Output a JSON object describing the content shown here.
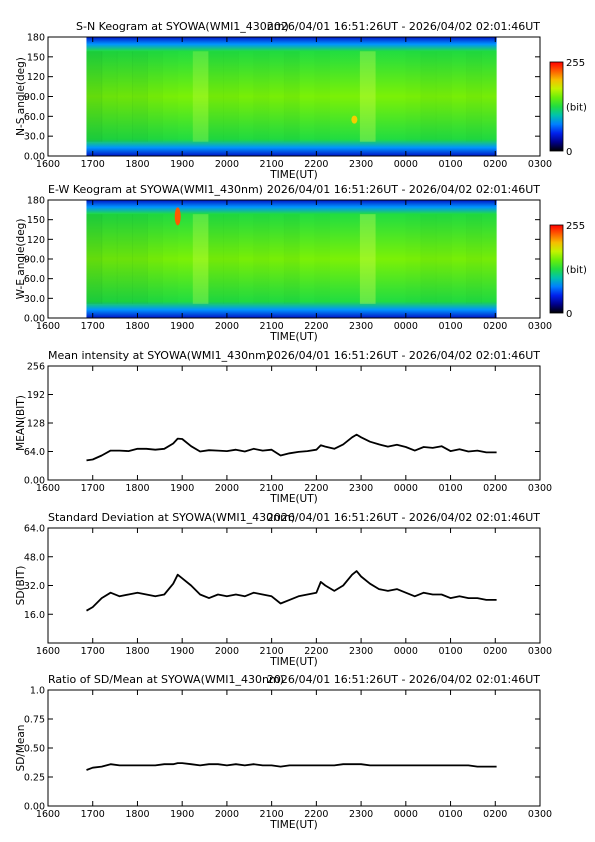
{
  "time_range": "2026/04/01 16:51:26UT - 2026/04/02 02:01:46UT",
  "chart_data": [
    {
      "type": "heatmap",
      "title": "S-N Keogram at SYOWA(WMI1_430nm)",
      "xlabel": "TIME(UT)",
      "ylabel": "N-S angle(deg)",
      "x_ticks": [
        "1600",
        "1700",
        "1800",
        "1900",
        "2000",
        "2100",
        "2200",
        "2300",
        "0000",
        "0100",
        "0200",
        "0300"
      ],
      "y_ticks": [
        "0.00",
        "30.0",
        "60.0",
        "90.0",
        "120",
        "150",
        "180"
      ],
      "x_range_hours": [
        16.0,
        27.0
      ],
      "data_range_hours": [
        16.86,
        26.03
      ],
      "ylim": [
        0,
        180
      ],
      "colorbar": {
        "min": "0",
        "max": "255",
        "unit": "(bit)"
      },
      "brightness_profile": [
        0.45,
        0.5,
        0.52,
        0.5,
        0.55,
        0.58,
        0.6,
        0.72,
        0.55,
        0.55,
        0.58,
        0.56,
        0.58,
        0.55,
        0.6,
        0.58,
        0.6,
        0.65,
        0.78,
        0.6,
        0.6,
        0.58,
        0.55,
        0.56,
        0.58,
        0.55,
        0.57
      ],
      "hot_spot": {
        "time_hours": 22.85,
        "angle_deg": 55,
        "value": 200
      },
      "upper_edge_change": {
        "time_hours": 19.6,
        "angle_deg_before": 168,
        "angle_deg_after": 160
      }
    },
    {
      "type": "heatmap",
      "title": "E-W Keogram at SYOWA(WMI1_430nm)",
      "xlabel": "TIME(UT)",
      "ylabel": "W-E angle(deg)",
      "x_ticks": [
        "1600",
        "1700",
        "1800",
        "1900",
        "2000",
        "2100",
        "2200",
        "2300",
        "0000",
        "0100",
        "0200",
        "0300"
      ],
      "y_ticks": [
        "0.00",
        "30.0",
        "60.0",
        "90.0",
        "120",
        "150",
        "180"
      ],
      "x_range_hours": [
        16.0,
        27.0
      ],
      "data_range_hours": [
        16.86,
        26.03
      ],
      "ylim": [
        0,
        180
      ],
      "colorbar": {
        "min": "0",
        "max": "255",
        "unit": "(bit)"
      },
      "brightness_profile": [
        0.45,
        0.5,
        0.5,
        0.5,
        0.55,
        0.58,
        0.62,
        0.75,
        0.55,
        0.55,
        0.58,
        0.56,
        0.58,
        0.55,
        0.6,
        0.58,
        0.6,
        0.65,
        0.8,
        0.62,
        0.6,
        0.58,
        0.55,
        0.56,
        0.58,
        0.55,
        0.57
      ],
      "hot_spot": {
        "time_hours": 18.9,
        "angle_deg": 155,
        "value": 230
      }
    },
    {
      "type": "line",
      "title": "Mean intensity at SYOWA(WMI1_430nm)",
      "xlabel": "TIME(UT)",
      "ylabel": "MEAN(BIT)",
      "x_ticks": [
        "1600",
        "1700",
        "1800",
        "1900",
        "2000",
        "2100",
        "2200",
        "2300",
        "0000",
        "0100",
        "0200",
        "0300"
      ],
      "y_ticks": [
        "0.00",
        "64.0",
        "128",
        "192",
        "256"
      ],
      "x_range_hours": [
        16.0,
        27.0
      ],
      "ylim": [
        0,
        256
      ],
      "x": [
        16.86,
        17.0,
        17.2,
        17.4,
        17.6,
        17.8,
        18.0,
        18.2,
        18.4,
        18.6,
        18.8,
        18.9,
        19.0,
        19.2,
        19.4,
        19.6,
        19.8,
        20.0,
        20.2,
        20.4,
        20.6,
        20.8,
        21.0,
        21.2,
        21.4,
        21.6,
        21.8,
        22.0,
        22.1,
        22.2,
        22.4,
        22.6,
        22.8,
        22.9,
        23.0,
        23.2,
        23.4,
        23.6,
        23.8,
        24.0,
        24.2,
        24.4,
        24.6,
        24.8,
        25.0,
        25.2,
        25.4,
        25.6,
        25.8,
        26.03
      ],
      "y": [
        44,
        46,
        55,
        66,
        66,
        65,
        70,
        70,
        68,
        70,
        82,
        93,
        92,
        76,
        64,
        67,
        66,
        65,
        68,
        64,
        70,
        66,
        68,
        55,
        60,
        63,
        65,
        68,
        78,
        75,
        70,
        80,
        96,
        102,
        96,
        86,
        80,
        75,
        79,
        74,
        66,
        74,
        72,
        76,
        65,
        69,
        64,
        66,
        62,
        62
      ]
    },
    {
      "type": "line",
      "title": "Standard Deviation at SYOWA(WMI1_430nm)",
      "xlabel": "TIME(UT)",
      "ylabel": "SD(BIT)",
      "x_ticks": [
        "1600",
        "1700",
        "1800",
        "1900",
        "2000",
        "2100",
        "2200",
        "2300",
        "0000",
        "0100",
        "0200",
        "0300"
      ],
      "y_ticks": [
        "16.0",
        "32.0",
        "48.0",
        "64.0"
      ],
      "x_range_hours": [
        16.0,
        27.0
      ],
      "ylim": [
        0,
        64
      ],
      "x": [
        16.86,
        17.0,
        17.2,
        17.4,
        17.6,
        17.8,
        18.0,
        18.2,
        18.4,
        18.6,
        18.8,
        18.9,
        19.0,
        19.2,
        19.4,
        19.6,
        19.8,
        20.0,
        20.2,
        20.4,
        20.6,
        20.8,
        21.0,
        21.2,
        21.4,
        21.6,
        21.8,
        22.0,
        22.1,
        22.2,
        22.4,
        22.6,
        22.8,
        22.9,
        23.0,
        23.2,
        23.4,
        23.6,
        23.8,
        24.0,
        24.2,
        24.4,
        24.6,
        24.8,
        25.0,
        25.2,
        25.4,
        25.6,
        25.8,
        26.03
      ],
      "y": [
        18,
        20,
        25,
        28,
        26,
        27,
        28,
        27,
        26,
        27,
        33,
        38,
        36,
        32,
        27,
        25,
        27,
        26,
        27,
        26,
        28,
        27,
        26,
        22,
        24,
        26,
        27,
        28,
        34,
        32,
        29,
        32,
        38,
        40,
        37,
        33,
        30,
        29,
        30,
        28,
        26,
        28,
        27,
        27,
        25,
        26,
        25,
        25,
        24,
        24
      ]
    },
    {
      "type": "line",
      "title": "Ratio of SD/Mean at SYOWA(WMI1_430nm)",
      "xlabel": "TIME(UT)",
      "ylabel": "SD/Mean",
      "x_ticks": [
        "1600",
        "1700",
        "1800",
        "1900",
        "2000",
        "2100",
        "2200",
        "2300",
        "0000",
        "0100",
        "0200",
        "0300"
      ],
      "y_ticks": [
        "0.00",
        "0.25",
        "0.50",
        "0.75",
        "1.0"
      ],
      "x_range_hours": [
        16.0,
        27.0
      ],
      "ylim": [
        0,
        1.0
      ],
      "x": [
        16.86,
        17.0,
        17.2,
        17.4,
        17.6,
        17.8,
        18.0,
        18.2,
        18.4,
        18.6,
        18.8,
        18.9,
        19.0,
        19.2,
        19.4,
        19.6,
        19.8,
        20.0,
        20.2,
        20.4,
        20.6,
        20.8,
        21.0,
        21.2,
        21.4,
        21.6,
        21.8,
        22.0,
        22.2,
        22.4,
        22.6,
        22.8,
        23.0,
        23.2,
        23.4,
        23.6,
        23.8,
        24.0,
        24.2,
        24.4,
        24.6,
        24.8,
        25.0,
        25.2,
        25.4,
        25.6,
        25.8,
        26.03
      ],
      "y": [
        0.31,
        0.33,
        0.34,
        0.36,
        0.35,
        0.35,
        0.35,
        0.35,
        0.35,
        0.36,
        0.36,
        0.37,
        0.37,
        0.36,
        0.35,
        0.36,
        0.36,
        0.35,
        0.36,
        0.35,
        0.36,
        0.35,
        0.35,
        0.34,
        0.35,
        0.35,
        0.35,
        0.35,
        0.35,
        0.35,
        0.36,
        0.36,
        0.36,
        0.35,
        0.35,
        0.35,
        0.35,
        0.35,
        0.35,
        0.35,
        0.35,
        0.35,
        0.35,
        0.35,
        0.35,
        0.34,
        0.34,
        0.34
      ]
    }
  ]
}
